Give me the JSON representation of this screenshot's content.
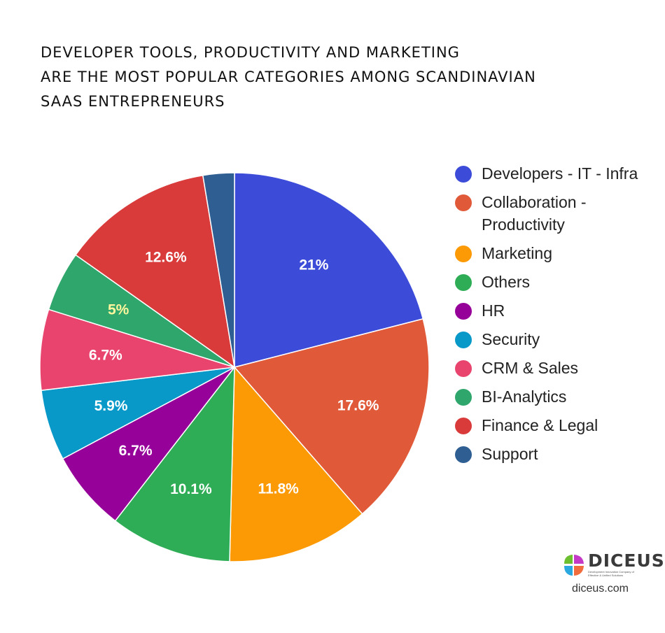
{
  "title_lines": [
    "DEVELOPER TOOLS, PRODUCTIVITY AND MARKETING",
    "ARE THE MOST POPULAR CATEGORIES AMONG SCANDINAVIAN",
    "SAAS ENTREPRENEURS"
  ],
  "chart_data": {
    "type": "pie",
    "title": "DEVELOPER TOOLS, PRODUCTIVITY AND MARKETING ARE THE MOST POPULAR CATEGORIES AMONG SCANDINAVIAN SAAS ENTREPRENEURS",
    "start_angle": "12 o'clock",
    "direction": "clockwise",
    "legend_position": "right",
    "slices": [
      {
        "name": "Developers - IT - Infra",
        "value": 21,
        "label": "21%",
        "color": "#3c4cd9",
        "label_color": "#ffffff"
      },
      {
        "name": "Collaboration - Productivity",
        "value": 17.6,
        "label": "17.6%",
        "color": "#e05a3a",
        "label_color": "#ffffff"
      },
      {
        "name": "Marketing",
        "value": 11.8,
        "label": "11.8%",
        "color": "#fc9a06",
        "label_color": "#ffffff"
      },
      {
        "name": "Others",
        "value": 10.1,
        "label": "10.1%",
        "color": "#2fad56",
        "label_color": "#ffffff"
      },
      {
        "name": "HR",
        "value": 6.7,
        "label": "6.7%",
        "color": "#960299",
        "label_color": "#ffffff"
      },
      {
        "name": "Security",
        "value": 5.9,
        "label": "5.9%",
        "color": "#0999c9",
        "label_color": "#ffffff"
      },
      {
        "name": "CRM & Sales",
        "value": 6.7,
        "label": "6.7%",
        "color": "#e8446e",
        "label_color": "#ffffff"
      },
      {
        "name": "BI-Analytics",
        "value": 5,
        "label": "5%",
        "color": "#2fa66c",
        "label_color": "#fff59d"
      },
      {
        "name": "Finance & Legal",
        "value": 12.6,
        "label": "12.6%",
        "color": "#d93b3b",
        "label_color": "#ffffff"
      },
      {
        "name": "Support",
        "value": 2.6,
        "label": "",
        "color": "#2f5e92",
        "label_color": "#ffffff"
      }
    ],
    "legend_lines": [
      [
        "Developers - IT - Infra"
      ],
      [
        "Collaboration -",
        "Productivity"
      ],
      [
        "Marketing"
      ],
      [
        "Others"
      ],
      [
        "HR"
      ],
      [
        "Security"
      ],
      [
        "CRM & Sales"
      ],
      [
        "BI-Analytics"
      ],
      [
        "Finance & Legal"
      ],
      [
        "Support"
      ]
    ]
  },
  "logo": {
    "name": "DICEUS",
    "tagline": "Development Innovation Company of Effective & Unified Solutions",
    "url": "diceus.com",
    "colors": [
      "#6cbf2e",
      "#c43ac6",
      "#2aa8e0",
      "#f26d3d"
    ]
  }
}
